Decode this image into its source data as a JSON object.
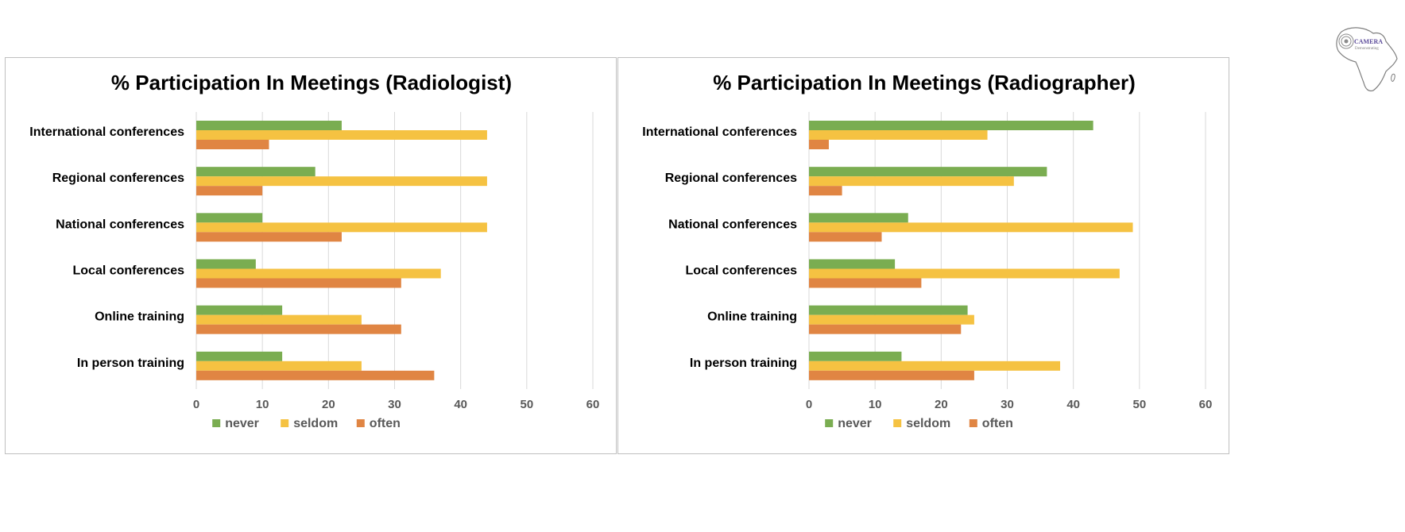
{
  "logo": {
    "name": "CAMERA",
    "tagline": "Demonstrating"
  },
  "colors": {
    "never": "#7aad51",
    "seldom": "#f5c242",
    "often": "#e08543",
    "grid": "#d9d9d9",
    "text": "#000000",
    "tick": "#595959"
  },
  "chart_data": [
    {
      "type": "bar",
      "orientation": "horizontal",
      "title": "% Participation In Meetings (Radiologist)",
      "categories": [
        "International conferences",
        "Regional conferences",
        "National conferences",
        "Local conferences",
        "Online training",
        "In person training"
      ],
      "series": [
        {
          "name": "never",
          "values": [
            22,
            18,
            10,
            9,
            13,
            13
          ]
        },
        {
          "name": "seldom",
          "values": [
            44,
            44,
            44,
            37,
            25,
            25
          ]
        },
        {
          "name": "often",
          "values": [
            11,
            10,
            22,
            31,
            31,
            36
          ]
        }
      ],
      "xlim": [
        0,
        60
      ],
      "xticks": [
        "0",
        "10",
        "20",
        "30",
        "40",
        "50",
        "60"
      ],
      "grid": true,
      "legend": "bottom"
    },
    {
      "type": "bar",
      "orientation": "horizontal",
      "title": "% Participation In Meetings (Radiographer)",
      "categories": [
        "International conferences",
        "Regional conferences",
        "National conferences",
        "Local conferences",
        "Online training",
        "In person training"
      ],
      "series": [
        {
          "name": "never",
          "values": [
            43,
            36,
            15,
            13,
            24,
            14
          ]
        },
        {
          "name": "seldom",
          "values": [
            27,
            31,
            49,
            47,
            25,
            38
          ]
        },
        {
          "name": "often",
          "values": [
            3,
            5,
            11,
            17,
            23,
            25
          ]
        }
      ],
      "xlim": [
        0,
        60
      ],
      "xticks": [
        "0",
        "10",
        "20",
        "30",
        "40",
        "50",
        "60"
      ],
      "grid": true,
      "legend": "bottom"
    }
  ]
}
